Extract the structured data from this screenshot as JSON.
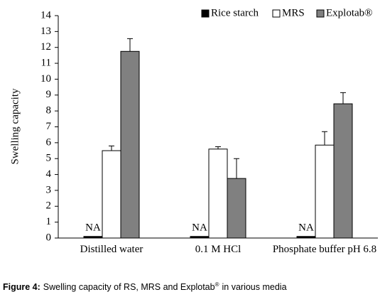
{
  "chart_data": {
    "type": "bar",
    "y_label": "Swelling capacity",
    "categories": [
      "Distilled water",
      "0.1 M HCl",
      "Phosphate buffer pH 6.8"
    ],
    "series": [
      {
        "name": "Rice starch",
        "color": "#000000",
        "values": [
          0.1,
          0.1,
          0.1
        ],
        "errors": [
          null,
          null,
          null
        ]
      },
      {
        "name": "MRS",
        "color": "#ffffff",
        "values": [
          5.5,
          5.6,
          5.85
        ],
        "errors": [
          0.3,
          0.15,
          0.85
        ]
      },
      {
        "name": "Explotab®",
        "color": "#808080",
        "values": [
          11.75,
          3.75,
          8.45
        ],
        "errors": [
          0.8,
          1.25,
          0.7
        ]
      }
    ],
    "annotations": [
      "NA",
      "NA",
      "NA"
    ],
    "ylim": [
      0,
      14
    ],
    "yticks": [
      0,
      1,
      2,
      3,
      4,
      5,
      6,
      7,
      8,
      9,
      10,
      11,
      12,
      13,
      14
    ],
    "grid": false,
    "legend": "top-right"
  },
  "caption": {
    "label": "Figure 4:",
    "text": "Swelling capacity of RS, MRS and Explotab",
    "sup": "®",
    "text_end": "in various media"
  }
}
